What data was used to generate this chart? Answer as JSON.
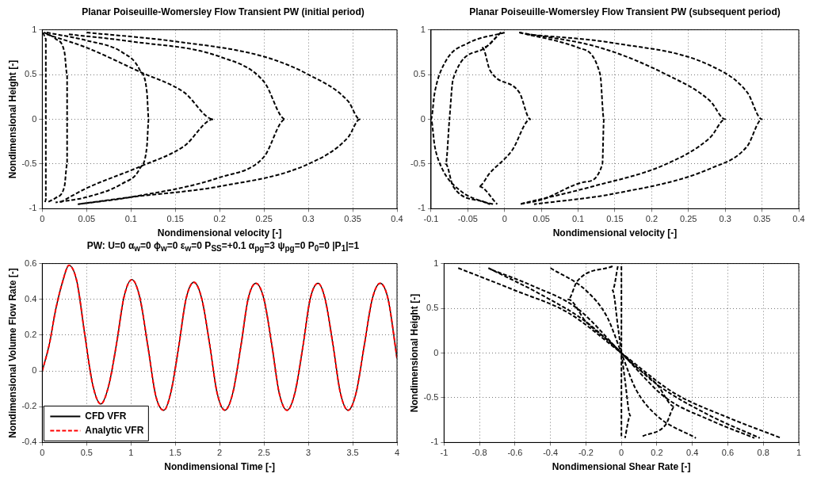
{
  "chart_data": [
    {
      "type": "line",
      "title": "Planar Poiseuille-Womersley Flow Transient PW (initial period)",
      "xlabel": "Nondimensional velocity [-]",
      "ylabel": "Nondimensional Height [-]",
      "xlim": [
        0,
        0.4
      ],
      "xticks": [
        0,
        0.05,
        0.1,
        0.15,
        0.2,
        0.25,
        0.3,
        0.35,
        0.4
      ],
      "ylim": [
        -1,
        1
      ],
      "yticks": [
        -1,
        -0.5,
        0,
        0.5,
        1
      ],
      "grid": true,
      "line_style": "dashed",
      "marker": "none",
      "series": [
        {
          "color": "#000000",
          "x": [
            0.001,
            0.004,
            0.004,
            0.004,
            0.004,
            0.004,
            0.003
          ],
          "values": [
            0.97,
            0.9,
            0.5,
            0,
            -0.5,
            -0.9,
            -0.93
          ]
        },
        {
          "color": "#000000",
          "x": [
            0.002,
            0.015,
            0.025,
            0.028,
            0.028,
            0.028,
            0.025,
            0.015,
            0.005
          ],
          "values": [
            0.97,
            0.9,
            0.75,
            0.5,
            0,
            -0.5,
            -0.75,
            -0.88,
            -0.93
          ]
        },
        {
          "color": "#000000",
          "x": [
            0.005,
            0.05,
            0.09,
            0.11,
            0.118,
            0.12,
            0.118,
            0.11,
            0.09,
            0.05,
            0.015
          ],
          "values": [
            0.97,
            0.88,
            0.75,
            0.55,
            0.3,
            0,
            -0.3,
            -0.55,
            -0.72,
            -0.87,
            -0.93
          ]
        },
        {
          "color": "#000000",
          "x": [
            0.005,
            0.05,
            0.11,
            0.16,
            0.193,
            0.16,
            0.11,
            0.05,
            0.02
          ],
          "values": [
            0.95,
            0.8,
            0.53,
            0.3,
            0,
            -0.3,
            -0.53,
            -0.77,
            -0.93
          ]
        },
        {
          "color": "#000000",
          "x": [
            0.03,
            0.1,
            0.2,
            0.25,
            0.274,
            0.25,
            0.2,
            0.1,
            0.04
          ],
          "values": [
            0.95,
            0.87,
            0.7,
            0.42,
            0,
            -0.42,
            -0.65,
            -0.87,
            -0.95
          ]
        },
        {
          "color": "#000000",
          "x": [
            0.05,
            0.15,
            0.25,
            0.3,
            0.345,
            0.358,
            0.345,
            0.3,
            0.2,
            0.1,
            0.04
          ],
          "values": [
            0.97,
            0.87,
            0.7,
            0.5,
            0.2,
            0,
            -0.2,
            -0.5,
            -0.75,
            -0.87,
            -0.95
          ]
        }
      ]
    },
    {
      "type": "line",
      "title": "Planar Poiseuille-Womersley Flow Transient PW (subsequent period)",
      "xlabel": "Nondimensional velocity [-]",
      "xlim": [
        -0.1,
        0.4
      ],
      "xticks": [
        -0.1,
        -0.05,
        0,
        0.05,
        0.1,
        0.15,
        0.2,
        0.25,
        0.3,
        0.35,
        0.4
      ],
      "ylim": [
        -1,
        1
      ],
      "yticks": [
        -1,
        -0.5,
        0,
        0.5,
        1
      ],
      "grid": true,
      "line_style": "dashed",
      "marker": "none",
      "series": [
        {
          "color": "#000000",
          "x": [
            0,
            -0.05,
            -0.08,
            -0.095,
            -0.1,
            -0.095,
            -0.085,
            -0.06,
            -0.02
          ],
          "values": [
            0.97,
            0.85,
            0.65,
            0.3,
            0,
            -0.3,
            -0.55,
            -0.8,
            -0.95
          ]
        },
        {
          "color": "#000000",
          "x": [
            -0.005,
            -0.03,
            -0.07,
            -0.075,
            -0.08,
            -0.07,
            -0.03,
            -0.015
          ],
          "values": [
            0.97,
            0.78,
            0.45,
            0,
            -0.5,
            -0.75,
            -0.92,
            -0.95
          ]
        },
        {
          "color": "#000000",
          "x": [
            -0.005,
            -0.03,
            -0.02,
            0.02,
            0.035,
            0.01,
            -0.02,
            -0.035,
            -0.01
          ],
          "values": [
            0.97,
            0.8,
            0.55,
            0.3,
            0,
            -0.35,
            -0.6,
            -0.75,
            -0.95
          ]
        },
        {
          "color": "#000000",
          "x": [
            0.02,
            0.1,
            0.13,
            0.135,
            0.133,
            0.11,
            0.05,
            0.02
          ],
          "values": [
            0.97,
            0.8,
            0.5,
            0,
            -0.5,
            -0.7,
            -0.9,
            -0.95
          ]
        },
        {
          "color": "#000000",
          "x": [
            0.02,
            0.13,
            0.22,
            0.28,
            0.3,
            0.28,
            0.22,
            0.12,
            0.02
          ],
          "values": [
            0.97,
            0.8,
            0.5,
            0.2,
            0,
            -0.2,
            -0.5,
            -0.75,
            -0.95
          ]
        },
        {
          "color": "#000000",
          "x": [
            0.03,
            0.15,
            0.28,
            0.33,
            0.35,
            0.33,
            0.28,
            0.15,
            0.04
          ],
          "values": [
            0.95,
            0.85,
            0.6,
            0.3,
            0,
            -0.3,
            -0.55,
            -0.83,
            -0.95
          ]
        }
      ]
    },
    {
      "type": "line",
      "title": "PW:  U=0 α$_{w}$=0 ϕ$_{w}$=0 ε$_{w}$=0 P$_{SS}$=+0.1 α$_{pg}$=3 ψ$_{pg}$=0 P$_{0}$=0 |P$_{1}$|=1",
      "xlabel": "Nondimensional Time [-]",
      "ylabel": "Nondimensional Volume Flow Rate [-]",
      "xlim": [
        0,
        4
      ],
      "xticks": [
        0,
        0.5,
        1,
        1.5,
        2,
        2.5,
        3,
        3.5,
        4
      ],
      "ylim": [
        -0.4,
        0.6
      ],
      "yticks": [
        -0.4,
        -0.2,
        0,
        0.2,
        0.4,
        0.6
      ],
      "grid": true,
      "legend": "bottom left",
      "marker": "none",
      "x": [
        0,
        0.08,
        0.15,
        0.23,
        0.3,
        0.39,
        0.48,
        0.57,
        0.66,
        0.75,
        0.84,
        0.92,
        1.01,
        1.1,
        1.19,
        1.28,
        1.37,
        1.45,
        1.54,
        1.62,
        1.71,
        1.8,
        1.89,
        1.97,
        2.06,
        2.15,
        2.24,
        2.32,
        2.41,
        2.5,
        2.59,
        2.67,
        2.76,
        2.85,
        2.94,
        3.02,
        3.11,
        3.19,
        3.28,
        3.36,
        3.45,
        3.54,
        3.63,
        3.72,
        3.81,
        3.9,
        4
      ],
      "series": [
        {
          "name": "CFD VFR",
          "color": "#000000",
          "line_style": "solid",
          "values": [
            0,
            0.15,
            0.34,
            0.5,
            0.59,
            0.5,
            0.2,
            -0.08,
            -0.185,
            -0.08,
            0.16,
            0.41,
            0.51,
            0.41,
            0.14,
            -0.14,
            -0.22,
            -0.12,
            0.14,
            0.4,
            0.495,
            0.4,
            0.14,
            -0.12,
            -0.22,
            -0.12,
            0.14,
            0.4,
            0.49,
            0.4,
            0.14,
            -0.12,
            -0.22,
            -0.12,
            0.14,
            0.4,
            0.49,
            0.4,
            0.14,
            -0.12,
            -0.22,
            -0.12,
            0.14,
            0.4,
            0.49,
            0.4,
            0.07
          ]
        },
        {
          "name": "Analytic VFR",
          "color": "#ff0000",
          "line_style": "dashed",
          "values": [
            0,
            0.15,
            0.34,
            0.5,
            0.59,
            0.5,
            0.2,
            -0.08,
            -0.185,
            -0.08,
            0.16,
            0.41,
            0.51,
            0.41,
            0.14,
            -0.14,
            -0.22,
            -0.12,
            0.14,
            0.4,
            0.495,
            0.4,
            0.14,
            -0.12,
            -0.22,
            -0.12,
            0.14,
            0.4,
            0.49,
            0.4,
            0.14,
            -0.12,
            -0.22,
            -0.12,
            0.14,
            0.4,
            0.49,
            0.4,
            0.14,
            -0.12,
            -0.22,
            -0.12,
            0.14,
            0.4,
            0.49,
            0.4,
            0.07
          ]
        }
      ]
    },
    {
      "type": "line",
      "xlabel": "Nondimensional Shear Rate [-]",
      "ylabel": "Nondimensional Height [-]",
      "xlim": [
        -1,
        1
      ],
      "xticks": [
        -1,
        -0.8,
        -0.6,
        -0.4,
        -0.2,
        0,
        0.2,
        0.4,
        0.6,
        0.8,
        1
      ],
      "ylim": [
        -1,
        1
      ],
      "yticks": [
        -1,
        -0.5,
        0,
        0.5,
        1
      ],
      "grid": true,
      "line_style": "dashed",
      "marker": "none",
      "series": [
        {
          "color": "#000000",
          "x": [
            -0.92,
            -0.6,
            -0.3,
            0,
            0.3,
            0.6,
            0.9
          ],
          "values": [
            0.95,
            0.7,
            0.45,
            0,
            -0.45,
            -0.72,
            -0.95
          ]
        },
        {
          "color": "#000000",
          "x": [
            -0.75,
            -0.45,
            -0.2,
            0,
            0.2,
            0.5,
            0.78
          ],
          "values": [
            0.95,
            0.65,
            0.35,
            0,
            -0.35,
            -0.7,
            -0.95
          ]
        },
        {
          "color": "#000000",
          "x": [
            -0.73,
            -0.5,
            -0.25,
            0,
            0.25,
            0.5,
            0.75
          ],
          "values": [
            0.93,
            0.75,
            0.5,
            0,
            -0.5,
            -0.75,
            -0.95
          ]
        },
        {
          "color": "#000000",
          "x": [
            -0.4,
            -0.2,
            -0.08,
            0,
            0.08,
            0.2,
            0.42
          ],
          "values": [
            0.95,
            0.7,
            0.4,
            0,
            -0.4,
            -0.7,
            -0.95
          ]
        },
        {
          "color": "#000000",
          "x": [
            -0.05,
            -0.25,
            -0.3,
            -0.2,
            -0.05,
            0,
            0.05,
            0.2,
            0.3,
            0.25,
            0.12
          ],
          "values": [
            0.97,
            0.8,
            0.6,
            0.35,
            0.1,
            0,
            -0.1,
            -0.35,
            -0.6,
            -0.8,
            -0.93
          ]
        },
        {
          "color": "#000000",
          "x": [
            -0.02,
            -0.05,
            -0.02,
            0,
            0.02,
            0.05,
            0.02
          ],
          "values": [
            0.97,
            0.7,
            0.3,
            0,
            -0.3,
            -0.7,
            -0.95
          ]
        },
        {
          "color": "#000000",
          "x": [
            0,
            0,
            0,
            0
          ],
          "values": [
            0.97,
            0.5,
            -0.5,
            -0.93
          ]
        }
      ]
    }
  ]
}
